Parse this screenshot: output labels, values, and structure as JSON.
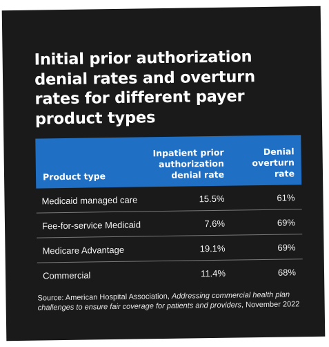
{
  "title": "Initial prior authorization denial rates and overturn rates for different payer product types",
  "table": {
    "headers": {
      "product_type": "Product type",
      "denial_rate": "Inpatient prior authorization denial rate",
      "overturn_rate": "Denial overturn rate"
    },
    "rows": [
      {
        "product": "Medicaid managed care",
        "denial": "15.5%",
        "overturn": "61%"
      },
      {
        "product": "Fee-for-service Medicaid",
        "denial": "7.6%",
        "overturn": "69%"
      },
      {
        "product": "Medicare Advantage",
        "denial": "19.1%",
        "overturn": "69%"
      },
      {
        "product": "Commercial",
        "denial": "11.4%",
        "overturn": "68%"
      }
    ]
  },
  "source": {
    "prefix": "Source: American Hospital Association, ",
    "publication": "Addressing commercial health plan challenges to ensure fair coverage for patients and providers",
    "suffix": ", November 2022"
  },
  "colors": {
    "card_background": "#1a1a1a",
    "header_background": "#1f6fc5",
    "text": "#ffffff"
  }
}
